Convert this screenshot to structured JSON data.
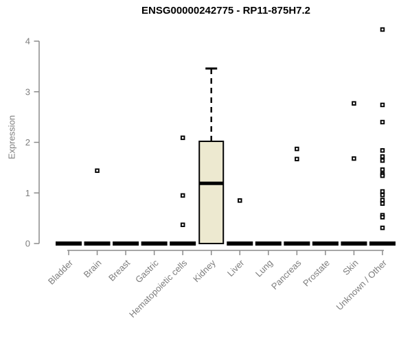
{
  "chart_data": {
    "type": "boxplot",
    "title": "ENSG00000242775 - RP11-875H7.2",
    "xlabel": "",
    "ylabel": "Expression",
    "ylim": [
      0,
      4.3
    ],
    "yticks": [
      0,
      1,
      2,
      3,
      4
    ],
    "grid": false,
    "legend": "none",
    "categories": [
      "Bladder",
      "Brain",
      "Breast",
      "Gastric",
      "Hematopoietic cells",
      "Kidney",
      "Liver",
      "Lung",
      "Pancreas",
      "Prostate",
      "Skin",
      "Unknown / Other"
    ],
    "boxes": [
      {
        "category": "Bladder",
        "whisker_low": 0,
        "q1": 0,
        "median": 0,
        "q3": 0,
        "whisker_high": 0,
        "outliers": []
      },
      {
        "category": "Brain",
        "whisker_low": 0,
        "q1": 0,
        "median": 0,
        "q3": 0,
        "whisker_high": 0,
        "outliers": [
          1.44
        ]
      },
      {
        "category": "Breast",
        "whisker_low": 0,
        "q1": 0,
        "median": 0,
        "q3": 0,
        "whisker_high": 0,
        "outliers": []
      },
      {
        "category": "Gastric",
        "whisker_low": 0,
        "q1": 0,
        "median": 0,
        "q3": 0,
        "whisker_high": 0,
        "outliers": []
      },
      {
        "category": "Hematopoietic cells",
        "whisker_low": 0,
        "q1": 0,
        "median": 0,
        "q3": 0,
        "whisker_high": 0,
        "outliers": [
          2.09,
          0.95,
          0.37
        ]
      },
      {
        "category": "Kidney",
        "whisker_low": 0,
        "q1": 0,
        "median": 1.19,
        "q3": 2.02,
        "whisker_high": 3.46,
        "outliers": []
      },
      {
        "category": "Liver",
        "whisker_low": 0,
        "q1": 0,
        "median": 0,
        "q3": 0,
        "whisker_high": 0,
        "outliers": [
          0.85
        ]
      },
      {
        "category": "Lung",
        "whisker_low": 0,
        "q1": 0,
        "median": 0,
        "q3": 0,
        "whisker_high": 0,
        "outliers": []
      },
      {
        "category": "Pancreas",
        "whisker_low": 0,
        "q1": 0,
        "median": 0,
        "q3": 0,
        "whisker_high": 0,
        "outliers": [
          1.87,
          1.67
        ]
      },
      {
        "category": "Prostate",
        "whisker_low": 0,
        "q1": 0,
        "median": 0,
        "q3": 0,
        "whisker_high": 0,
        "outliers": []
      },
      {
        "category": "Skin",
        "whisker_low": 0,
        "q1": 0,
        "median": 0,
        "q3": 0,
        "whisker_high": 0,
        "outliers": [
          2.77,
          1.68
        ]
      },
      {
        "category": "Unknown / Other",
        "whisker_low": 0,
        "q1": 0,
        "median": 0,
        "q3": 0,
        "whisker_high": 0,
        "outliers": [
          4.23,
          2.74,
          2.4,
          1.84,
          1.72,
          1.64,
          1.46,
          1.37,
          1.34,
          1.03,
          0.96,
          0.86,
          0.79,
          0.56,
          0.52,
          0.31
        ]
      }
    ],
    "colors": {
      "box_fill": "#ede9d0",
      "box_stroke": "#000000",
      "median": "#000000",
      "outlier_stroke": "#000000",
      "outlier_fill": "#ffffff",
      "axis_line": "#8a8a8a",
      "tick_label": "#7d7d7d",
      "title": "#000000"
    }
  }
}
